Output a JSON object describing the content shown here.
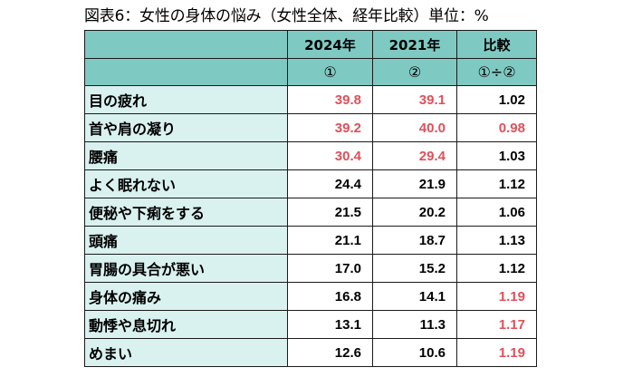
{
  "title": "図表6：女性の身体の悩み（女性全体、経年比較）単位：%",
  "header": {
    "col2": "2024年",
    "col3": "2021年",
    "col4": "比較",
    "sub2": "①",
    "sub3": "②",
    "sub4": "①÷②"
  },
  "colors": {
    "header_bg": "#7fc9c3",
    "label_bg": "#d9f1ef",
    "highlight": "#e0505a"
  },
  "rows": [
    {
      "label": "目の疲れ",
      "v2024": "39.8",
      "v2021": "39.1",
      "ratio": "1.02",
      "red": [
        true,
        true,
        false
      ]
    },
    {
      "label": "首や肩の凝り",
      "v2024": "39.2",
      "v2021": "40.0",
      "ratio": "0.98",
      "red": [
        true,
        true,
        true
      ]
    },
    {
      "label": "腰痛",
      "v2024": "30.4",
      "v2021": "29.4",
      "ratio": "1.03",
      "red": [
        true,
        true,
        false
      ]
    },
    {
      "label": "よく眠れない",
      "v2024": "24.4",
      "v2021": "21.9",
      "ratio": "1.12",
      "red": [
        false,
        false,
        false
      ]
    },
    {
      "label": "便秘や下痢をする",
      "v2024": "21.5",
      "v2021": "20.2",
      "ratio": "1.06",
      "red": [
        false,
        false,
        false
      ]
    },
    {
      "label": "頭痛",
      "v2024": "21.1",
      "v2021": "18.7",
      "ratio": "1.13",
      "red": [
        false,
        false,
        false
      ]
    },
    {
      "label": "胃腸の具合が悪い",
      "v2024": "17.0",
      "v2021": "15.2",
      "ratio": "1.12",
      "red": [
        false,
        false,
        false
      ]
    },
    {
      "label": "身体の痛み",
      "v2024": "16.8",
      "v2021": "14.1",
      "ratio": "1.19",
      "red": [
        false,
        false,
        true
      ]
    },
    {
      "label": "動悸や息切れ",
      "v2024": "13.1",
      "v2021": "11.3",
      "ratio": "1.17",
      "red": [
        false,
        false,
        true
      ]
    },
    {
      "label": "めまい",
      "v2024": "12.6",
      "v2021": "10.6",
      "ratio": "1.19",
      "red": [
        false,
        false,
        true
      ]
    }
  ]
}
